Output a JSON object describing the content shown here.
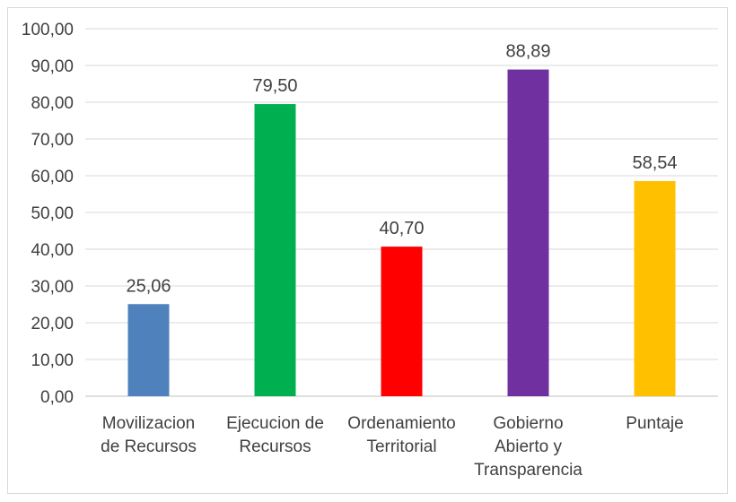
{
  "chart_data": {
    "type": "bar",
    "categories": [
      [
        "Movilizacion",
        "de Recursos"
      ],
      [
        "Ejecucion de",
        "Recursos"
      ],
      [
        "Ordenamiento",
        "Territorial"
      ],
      [
        "Gobierno",
        "Abierto y",
        "Transparencia"
      ],
      [
        "Puntaje"
      ]
    ],
    "values": [
      25.06,
      79.5,
      40.7,
      88.89,
      58.54
    ],
    "value_labels": [
      "25,06",
      "79,50",
      "40,70",
      "88,89",
      "58,54"
    ],
    "bar_colors": [
      "#4f81bd",
      "#00b050",
      "#ff0000",
      "#7030a0",
      "#ffc000"
    ],
    "ylim": [
      0,
      100
    ],
    "yticks": [
      0,
      10,
      20,
      30,
      40,
      50,
      60,
      70,
      80,
      90,
      100
    ],
    "ytick_labels": [
      "0,00",
      "10,00",
      "20,00",
      "30,00",
      "40,00",
      "50,00",
      "60,00",
      "70,00",
      "80,00",
      "90,00",
      "100,00"
    ],
    "grid": true,
    "legend": "none",
    "colors": {
      "grid": "#d9d9d9",
      "axis": "#bfbfbf",
      "text": "#404040"
    }
  }
}
